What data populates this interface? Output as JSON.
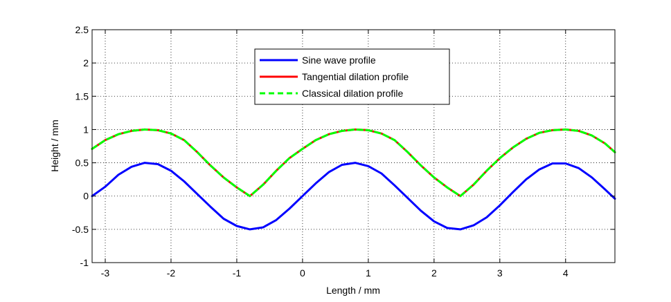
{
  "chart_data": {
    "type": "line",
    "title": "",
    "xlabel": "Length / mm",
    "ylabel": "Height / mm",
    "xlim": [
      -3.2,
      4.75
    ],
    "ylim": [
      -1,
      2.5
    ],
    "xticks": [
      -3,
      -2,
      -1,
      0,
      1,
      2,
      3,
      4
    ],
    "xtick_labels": [
      "-3",
      "-2",
      "-1",
      "0",
      "1",
      "2",
      "3",
      "4"
    ],
    "yticks": [
      -1,
      -0.5,
      0,
      0.5,
      1,
      1.5,
      2,
      2.5
    ],
    "ytick_labels": [
      "-1",
      "-0.5",
      "0",
      "0.5",
      "1",
      "1.5",
      "2",
      "2.5"
    ],
    "grid": true,
    "legend_position": "top-center",
    "series": [
      {
        "name": "Sine wave profile",
        "color": "#0000ff",
        "style": "solid",
        "x": [
          -3.2,
          -3.0,
          -2.8,
          -2.6,
          -2.4,
          -2.2,
          -2.0,
          -1.8,
          -1.6,
          -1.4,
          -1.2,
          -1.0,
          -0.8,
          -0.6,
          -0.4,
          -0.2,
          0.0,
          0.2,
          0.4,
          0.6,
          0.8,
          1.0,
          1.2,
          1.4,
          1.6,
          1.8,
          2.0,
          2.2,
          2.4,
          2.6,
          2.8,
          3.0,
          3.2,
          3.4,
          3.6,
          3.8,
          4.0,
          4.2,
          4.4,
          4.6,
          4.75
        ],
        "y": [
          -0.0,
          0.14,
          0.32,
          0.44,
          0.5,
          0.48,
          0.38,
          0.22,
          0.03,
          -0.16,
          -0.34,
          -0.45,
          -0.5,
          -0.47,
          -0.36,
          -0.19,
          0.0,
          0.19,
          0.36,
          0.47,
          0.5,
          0.45,
          0.34,
          0.16,
          -0.03,
          -0.22,
          -0.38,
          -0.48,
          -0.5,
          -0.44,
          -0.32,
          -0.14,
          0.06,
          0.25,
          0.4,
          0.49,
          0.49,
          0.42,
          0.28,
          0.1,
          -0.04
        ]
      },
      {
        "name": "Tangential dilation profile",
        "color": "#ff0000",
        "style": "solid",
        "x": [
          -3.2,
          -3.0,
          -2.8,
          -2.6,
          -2.4,
          -2.2,
          -2.0,
          -1.8,
          -1.6,
          -1.4,
          -1.2,
          -1.0,
          -0.8,
          -0.6,
          -0.4,
          -0.2,
          0.0,
          0.2,
          0.4,
          0.6,
          0.8,
          1.0,
          1.2,
          1.4,
          1.6,
          1.8,
          2.0,
          2.2,
          2.4,
          2.6,
          2.8,
          3.0,
          3.2,
          3.4,
          3.6,
          3.8,
          4.0,
          4.2,
          4.4,
          4.6,
          4.75
        ],
        "y": [
          0.71,
          0.84,
          0.93,
          0.98,
          1.0,
          0.99,
          0.94,
          0.84,
          0.66,
          0.46,
          0.28,
          0.13,
          0.0,
          0.17,
          0.38,
          0.57,
          0.71,
          0.84,
          0.93,
          0.98,
          1.0,
          0.99,
          0.94,
          0.84,
          0.66,
          0.46,
          0.28,
          0.13,
          0.0,
          0.17,
          0.38,
          0.57,
          0.73,
          0.86,
          0.95,
          0.99,
          1.0,
          0.98,
          0.91,
          0.79,
          0.66
        ]
      },
      {
        "name": "Classical dilation profile",
        "color": "#00ff00",
        "style": "dashed",
        "x": [
          -3.2,
          -3.0,
          -2.8,
          -2.6,
          -2.4,
          -2.2,
          -2.0,
          -1.8,
          -1.6,
          -1.4,
          -1.2,
          -1.0,
          -0.8,
          -0.6,
          -0.4,
          -0.2,
          0.0,
          0.2,
          0.4,
          0.6,
          0.8,
          1.0,
          1.2,
          1.4,
          1.6,
          1.8,
          2.0,
          2.2,
          2.4,
          2.6,
          2.8,
          3.0,
          3.2,
          3.4,
          3.6,
          3.8,
          4.0,
          4.2,
          4.4,
          4.6,
          4.75
        ],
        "y": [
          0.71,
          0.84,
          0.93,
          0.98,
          1.0,
          0.99,
          0.94,
          0.84,
          0.66,
          0.46,
          0.28,
          0.13,
          0.0,
          0.17,
          0.38,
          0.57,
          0.71,
          0.84,
          0.93,
          0.98,
          1.0,
          0.99,
          0.94,
          0.84,
          0.66,
          0.46,
          0.28,
          0.13,
          0.0,
          0.17,
          0.38,
          0.57,
          0.73,
          0.86,
          0.95,
          0.99,
          1.0,
          0.98,
          0.91,
          0.79,
          0.66
        ]
      }
    ]
  }
}
